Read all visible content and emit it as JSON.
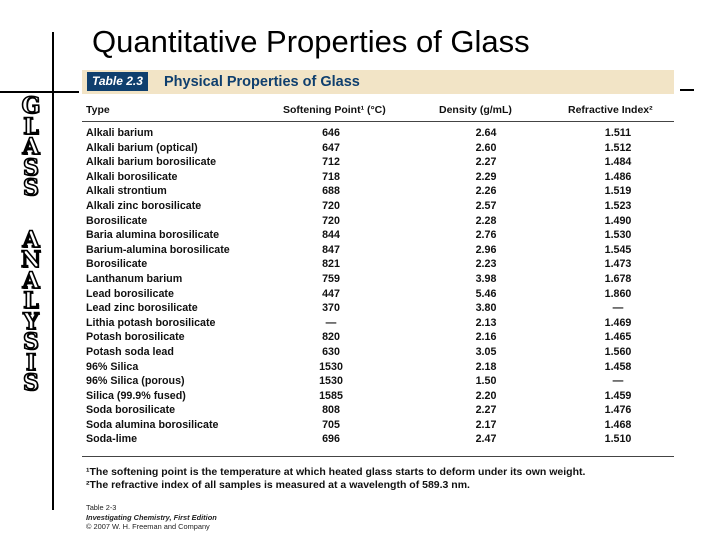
{
  "slide": {
    "title": "Quantitative Properties of Glass",
    "side_letters": [
      "G",
      "L",
      "A",
      "S",
      "S",
      "",
      "A",
      "N",
      "A",
      "L",
      "Y",
      "S",
      "I",
      "S"
    ]
  },
  "table": {
    "tag": "Table 2.3",
    "name": "Physical Properties of Glass",
    "columns": [
      "Type",
      "Softening Point¹ (°C)",
      "Density (g/mL)",
      "Refractive Index²"
    ],
    "rows": [
      [
        "Alkali barium",
        "646",
        "2.64",
        "1.511"
      ],
      [
        "Alkali barium (optical)",
        "647",
        "2.60",
        "1.512"
      ],
      [
        "Alkali barium borosilicate",
        "712",
        "2.27",
        "1.484"
      ],
      [
        "Alkali borosilicate",
        "718",
        "2.29",
        "1.486"
      ],
      [
        "Alkali strontium",
        "688",
        "2.26",
        "1.519"
      ],
      [
        "Alkali zinc borosilicate",
        "720",
        "2.57",
        "1.523"
      ],
      [
        "Borosilicate",
        "720",
        "2.28",
        "1.490"
      ],
      [
        "Baria alumina borosilicate",
        "844",
        "2.76",
        "1.530"
      ],
      [
        "Barium-alumina borosilicate",
        "847",
        "2.96",
        "1.545"
      ],
      [
        "Borosilicate",
        "821",
        "2.23",
        "1.473"
      ],
      [
        "Lanthanum barium",
        "759",
        "3.98",
        "1.678"
      ],
      [
        "Lead borosilicate",
        "447",
        "5.46",
        "1.860"
      ],
      [
        "Lead zinc borosilicate",
        "370",
        "3.80",
        "—"
      ],
      [
        "Lithia potash borosilicate",
        "—",
        "2.13",
        "1.469"
      ],
      [
        "Potash borosilicate",
        "820",
        "2.16",
        "1.465"
      ],
      [
        "Potash soda lead",
        "630",
        "3.05",
        "1.560"
      ],
      [
        "96% Silica",
        "1530",
        "2.18",
        "1.458"
      ],
      [
        "96% Silica (porous)",
        "1530",
        "1.50",
        "—"
      ],
      [
        "Silica (99.9% fused)",
        "1585",
        "2.20",
        "1.459"
      ],
      [
        "Soda borosilicate",
        "808",
        "2.27",
        "1.476"
      ],
      [
        "Soda alumina borosilicate",
        "705",
        "2.17",
        "1.468"
      ],
      [
        "Soda-lime",
        "696",
        "2.47",
        "1.510"
      ]
    ],
    "footnotes": [
      "¹The softening point is the temperature at which heated glass starts to deform under its own weight.",
      "²The refractive index of all samples is measured at a wavelength of 589.3 nm."
    ],
    "credit": {
      "line1": "Table 2-3",
      "line2": "Investigating Chemistry, First Edition",
      "line3": "© 2007 W. H. Freeman and Company"
    }
  }
}
